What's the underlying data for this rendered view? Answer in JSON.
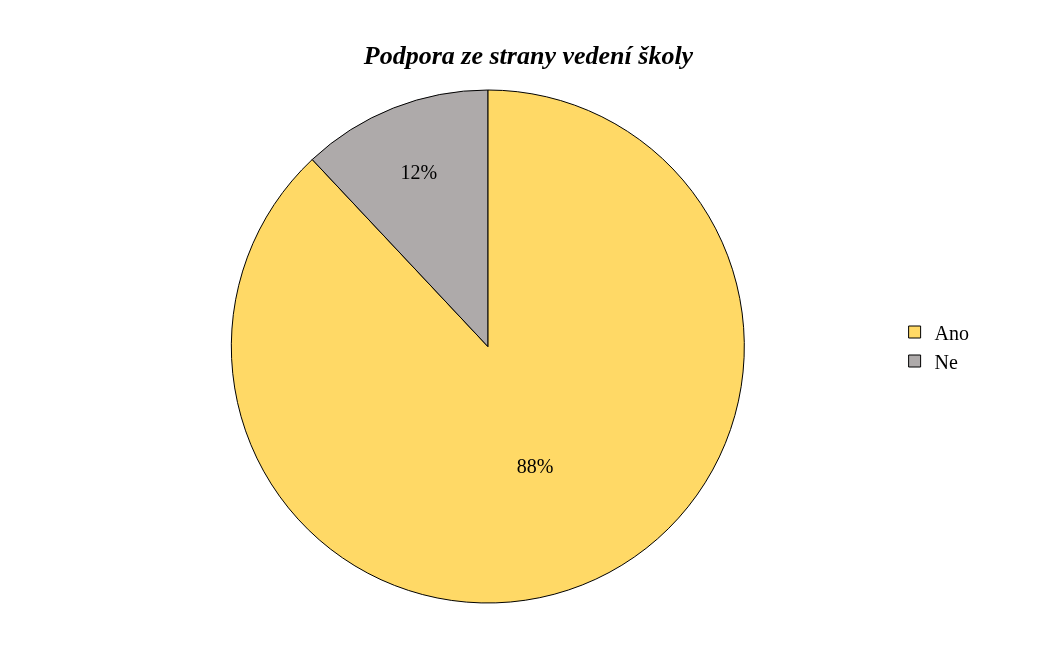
{
  "chart_data": {
    "type": "pie",
    "title": "Podpora ze strany vedení školy",
    "categories": [
      "Ano",
      "Ne"
    ],
    "values": [
      88,
      12
    ],
    "colors": [
      "#ffd966",
      "#aeaaaa"
    ],
    "value_labels": [
      "88%",
      "12%"
    ],
    "legend": "right"
  }
}
